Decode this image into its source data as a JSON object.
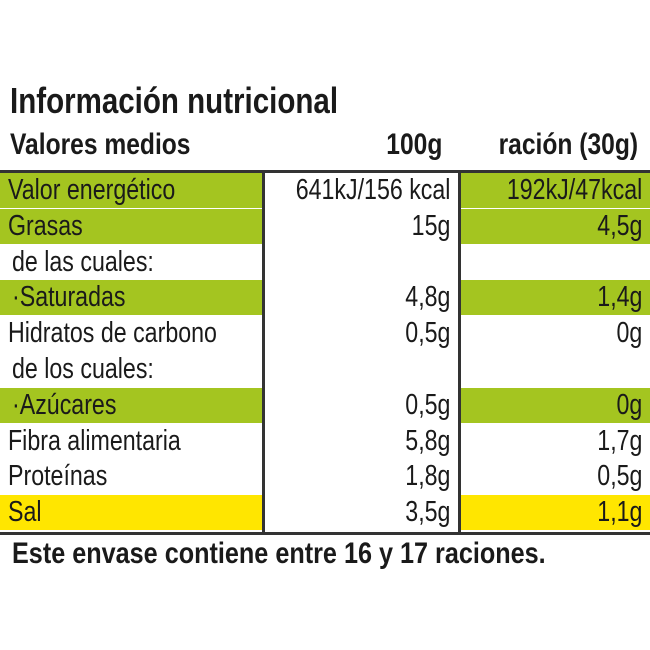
{
  "title": "Información nutricional",
  "header": {
    "label": "Valores medios",
    "col_100g": "100g",
    "col_serving": "ración (30g)"
  },
  "colors": {
    "green": "#a4c520",
    "yellow": "#ffe600",
    "rule": "#333333"
  },
  "rows": [
    {
      "label": "Valor energético",
      "per100": "641kJ/156 kcal",
      "serving": "192kJ/47kcal",
      "highlight": "green"
    },
    {
      "label": "Grasas",
      "per100": "15g",
      "serving": "4,5g",
      "highlight": "green"
    },
    {
      "label": "de las cuales:",
      "per100": "",
      "serving": "",
      "highlight": "none"
    },
    {
      "label": "·Saturadas",
      "per100": "4,8g",
      "serving": "1,4g",
      "highlight": "green"
    },
    {
      "label": "Hidratos de carbono",
      "per100": "0,5g",
      "serving": "0g",
      "highlight": "none"
    },
    {
      "label": "de los cuales:",
      "per100": "",
      "serving": "",
      "highlight": "none"
    },
    {
      "label": "·Azúcares",
      "per100": "0,5g",
      "serving": "0g",
      "highlight": "green"
    },
    {
      "label": "Fibra alimentaria",
      "per100": "5,8g",
      "serving": "1,7g",
      "highlight": "none"
    },
    {
      "label": "Proteínas",
      "per100": "1,8g",
      "serving": "0,5g",
      "highlight": "none"
    },
    {
      "label": "Sal",
      "per100": "3,5g",
      "serving": "1,1g",
      "highlight": "yellow"
    }
  ],
  "footer": "Este envase contiene entre 16 y 17 raciones."
}
